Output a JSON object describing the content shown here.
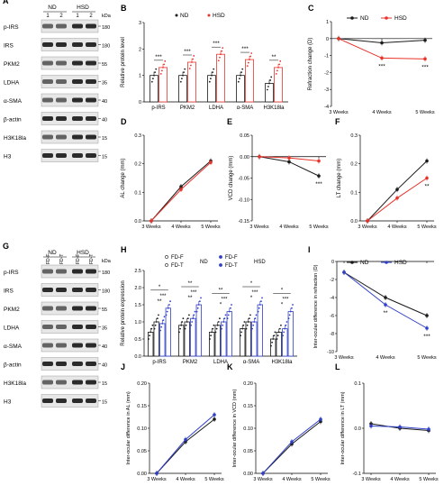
{
  "colors": {
    "nd": "#1a1a1a",
    "hsd": "#e8332b",
    "hsd_blue": "#2f3fc8",
    "ctrl_bar_fill": "#ffffff",
    "band": "#2b2b2b"
  },
  "panels": {
    "A": {
      "label": "A",
      "groups": [
        "ND",
        "HSD"
      ],
      "lanes": [
        "1",
        "2",
        "1",
        "2"
      ],
      "kda_label": "kDa",
      "proteins": [
        "p-IRS",
        "IRS",
        "PKM2",
        "LDHA",
        "α-SMA",
        "β-actin",
        "H3K18la",
        "H3"
      ],
      "kda": [
        "180",
        "180",
        "55",
        "35",
        "40",
        "40",
        "15",
        "15"
      ]
    },
    "G": {
      "label": "G",
      "groups": [
        "ND",
        "HSD"
      ],
      "lanes": [
        "FD-F",
        "FD-T",
        "FD-F",
        "FD-T"
      ],
      "kda_label": "kDa",
      "proteins": [
        "p-IRS",
        "IRS",
        "PKM2",
        "LDHA",
        "α-SMA",
        "β-actin",
        "H3K18la",
        "H3"
      ],
      "kda": [
        "180",
        "180",
        "55",
        "35",
        "40",
        "40",
        "15",
        "15"
      ]
    }
  },
  "chart_data": [
    {
      "panel": "B",
      "type": "bar",
      "legend": [
        "ND",
        "HSD"
      ],
      "ylabel": "Relative protein level",
      "ylim": [
        0,
        3
      ],
      "yticks": [
        "0",
        "1",
        "2",
        "3"
      ],
      "categories": [
        "p-IRS",
        "PKM2",
        "LDHA",
        "α-SMA",
        "H3K18la"
      ],
      "series": [
        {
          "name": "ND",
          "values": [
            1.0,
            1.0,
            1.0,
            1.0,
            0.7
          ]
        },
        {
          "name": "HSD",
          "values": [
            1.3,
            1.5,
            1.8,
            1.6,
            1.3
          ]
        }
      ],
      "significance": [
        "***",
        "***",
        "***",
        "***",
        "**"
      ]
    },
    {
      "panel": "C",
      "type": "line",
      "legend": [
        "ND",
        "HSD"
      ],
      "ylabel": "Refraction change (D)",
      "ylim": [
        -4,
        1
      ],
      "yticks": [
        "1",
        "0",
        "-1",
        "-2",
        "-3",
        "-4"
      ],
      "categories": [
        "3 Weeks",
        "4 Weeks",
        "5 Weeks"
      ],
      "series": [
        {
          "name": "ND",
          "values": [
            0,
            -0.25,
            -0.1
          ]
        },
        {
          "name": "HSD",
          "values": [
            0,
            -1.15,
            -1.2
          ]
        }
      ],
      "significance": [
        "",
        "***",
        "***"
      ]
    },
    {
      "panel": "D",
      "type": "line",
      "ylabel": "AL change (mm)",
      "ylim": [
        0,
        0.3
      ],
      "yticks": [
        "0.0",
        "0.1",
        "0.2",
        "0.3"
      ],
      "categories": [
        "3 Weeks",
        "4 Weeks",
        "5 Weeks"
      ],
      "series": [
        {
          "values": [
            0,
            0.12,
            0.21
          ]
        },
        {
          "values": [
            0,
            0.11,
            0.205
          ]
        }
      ]
    },
    {
      "panel": "E",
      "type": "line",
      "ylabel": "VCD change (mm)",
      "ylim": [
        -0.15,
        0.05
      ],
      "yticks": [
        "0.05",
        "0.00",
        "-0.05",
        "-0.10",
        "-0.15"
      ],
      "categories": [
        "3 Weeks",
        "4 Weeks",
        "5 Weeks"
      ],
      "series": [
        {
          "values": [
            0,
            -0.012,
            -0.045
          ]
        },
        {
          "values": [
            0,
            -0.003,
            -0.01
          ]
        }
      ],
      "significance": [
        "",
        "",
        "***"
      ]
    },
    {
      "panel": "F",
      "type": "line",
      "ylabel": "LT change (mm)",
      "ylim": [
        0,
        0.3
      ],
      "yticks": [
        "0.0",
        "0.1",
        "0.2",
        "0.3"
      ],
      "categories": [
        "3 Weeks",
        "4 Weeks",
        "5 Weeks"
      ],
      "series": [
        {
          "values": [
            0,
            0.11,
            0.21
          ]
        },
        {
          "values": [
            0,
            0.08,
            0.15
          ]
        }
      ],
      "significance": [
        "",
        "",
        "**"
      ]
    },
    {
      "panel": "H",
      "type": "bar",
      "legend": [
        "FD-F",
        "FD-T",
        "FD-F",
        "FD-T"
      ],
      "legend_groups": [
        "ND",
        "HSD"
      ],
      "ylabel": "Relative protein expression",
      "ylim": [
        0,
        2.5
      ],
      "yticks": [
        "0.0",
        "0.5",
        "1.0",
        "1.5",
        "2.0",
        "2.5"
      ],
      "categories": [
        "p-IRS",
        "PKM2",
        "LDHA",
        "α-SMA",
        "H3K18la"
      ],
      "series": [
        {
          "name": "FD-F",
          "values": [
            0.7,
            0.9,
            0.7,
            0.8,
            0.5
          ]
        },
        {
          "name": "FD-T",
          "values": [
            1.0,
            1.0,
            0.9,
            1.0,
            0.7
          ]
        },
        {
          "name": "FD-F",
          "values": [
            0.95,
            1.1,
            1.0,
            1.0,
            0.8
          ]
        },
        {
          "name": "FD-T",
          "values": [
            1.4,
            1.5,
            1.3,
            1.5,
            1.3
          ]
        }
      ],
      "significance": [
        "**",
        "**",
        "*",
        "*",
        "*"
      ],
      "significance_upper": [
        "*",
        "**",
        "**",
        "*",
        "*"
      ],
      "significance_mid": [
        "***",
        "***",
        "***",
        "***",
        "***"
      ]
    },
    {
      "panel": "I",
      "type": "line",
      "legend": [
        "ND",
        "HSD"
      ],
      "ylabel": "Inter-ocular difference in refraction (D)",
      "ylim": [
        -10,
        0
      ],
      "yticks": [
        "0",
        "-2",
        "-4",
        "-6",
        "-8",
        "-10"
      ],
      "categories": [
        "3 Weeks",
        "4 Weeks",
        "5 Weeks"
      ],
      "series": [
        {
          "name": "ND",
          "values": [
            -1.2,
            -4.0,
            -6.0
          ]
        },
        {
          "name": "HSD",
          "values": [
            -1.2,
            -4.8,
            -7.4
          ]
        }
      ],
      "significance": [
        "",
        "**",
        "***"
      ]
    },
    {
      "panel": "J",
      "type": "line",
      "ylabel": "Inter-ocular difference in AL (mm)",
      "ylim": [
        0,
        0.2
      ],
      "yticks": [
        "0.00",
        "0.05",
        "0.10",
        "0.15",
        "0.20"
      ],
      "categories": [
        "3 Weeks",
        "4 Weeks",
        "5 Weeks"
      ],
      "series": [
        {
          "values": [
            0.0,
            0.07,
            0.12
          ]
        },
        {
          "values": [
            0.0,
            0.075,
            0.13
          ]
        }
      ]
    },
    {
      "panel": "K",
      "type": "line",
      "ylabel": "Inter-ocular difference in VCD (mm)",
      "ylim": [
        0,
        0.2
      ],
      "yticks": [
        "0.00",
        "0.05",
        "0.10",
        "0.15",
        "0.20"
      ],
      "categories": [
        "3 Weeks",
        "4 Weeks",
        "5 Weeks"
      ],
      "series": [
        {
          "values": [
            0.0,
            0.065,
            0.115
          ]
        },
        {
          "values": [
            0.0,
            0.07,
            0.12
          ]
        }
      ]
    },
    {
      "panel": "L",
      "type": "line",
      "ylabel": "Inter-ocular difference in LT (mm)",
      "ylim": [
        -0.1,
        0.1
      ],
      "yticks": [
        "0.1",
        "0.0",
        "-0.1"
      ],
      "categories": [
        "3 Weeks",
        "4 Weeks",
        "5 Weeks"
      ],
      "series": [
        {
          "values": [
            0.01,
            0.0,
            -0.005
          ]
        },
        {
          "values": [
            0.005,
            0.003,
            -0.002
          ]
        }
      ]
    }
  ]
}
